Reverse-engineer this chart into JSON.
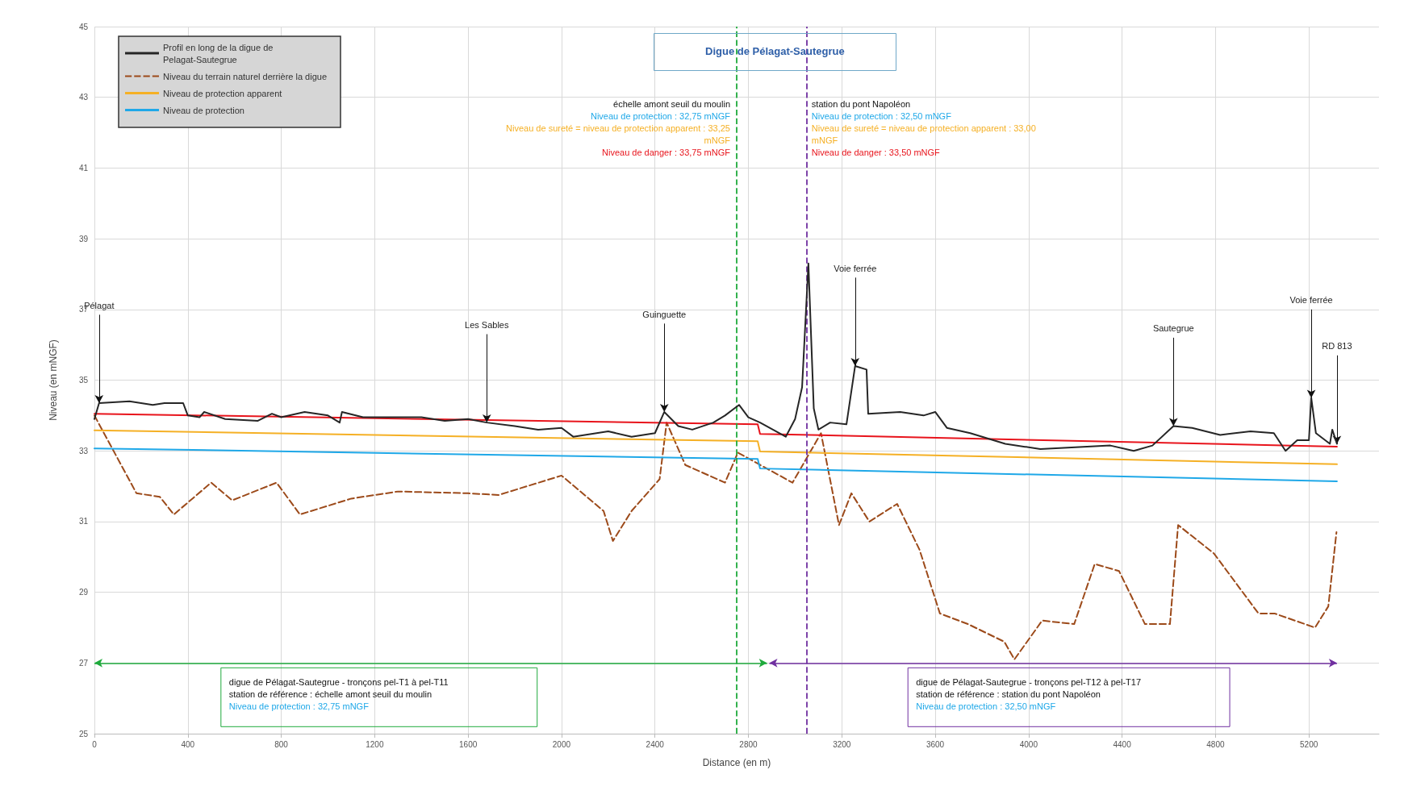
{
  "chart_data": {
    "type": "line",
    "title": "Digue de Pélagat-Sautegrue",
    "xlabel": "Distance (en m)",
    "ylabel": "Niveau (en mNGF)",
    "xlim": [
      0,
      5500
    ],
    "xticks": [
      0,
      400,
      800,
      1200,
      1600,
      2000,
      2400,
      2800,
      3200,
      3600,
      4000,
      4400,
      4800,
      5200
    ],
    "ylim": [
      25,
      45
    ],
    "yticks": [
      25,
      27,
      29,
      31,
      33,
      35,
      37,
      39,
      41,
      43,
      45
    ],
    "grid": true,
    "legend": "top left",
    "marker": "none",
    "series": [
      {
        "name": "Profil en long de la digue de Pelagat-Sautegrue",
        "color": "#262626",
        "line_style": "solid",
        "x": [
          0,
          20,
          150,
          250,
          300,
          380,
          400,
          450,
          470,
          560,
          700,
          760,
          800,
          900,
          1000,
          1050,
          1060,
          1150,
          1250,
          1400,
          1500,
          1600,
          1680,
          1800,
          1900,
          2000,
          2050,
          2200,
          2300,
          2400,
          2440,
          2500,
          2560,
          2650,
          2700,
          2760,
          2800,
          2850,
          2960,
          3000,
          3030,
          3057,
          3080,
          3100,
          3150,
          3220,
          3257,
          3306,
          3313,
          3450,
          3550,
          3600,
          3650,
          3750,
          3900,
          4050,
          4200,
          4350,
          4450,
          4530,
          4620,
          4700,
          4820,
          4950,
          5050,
          5100,
          5150,
          5200,
          5210,
          5230,
          5290,
          5300,
          5320
        ],
        "values": [
          33.9,
          34.35,
          34.4,
          34.3,
          34.35,
          34.35,
          34.0,
          33.95,
          34.1,
          33.9,
          33.85,
          34.05,
          33.95,
          34.1,
          34.0,
          33.8,
          34.1,
          33.95,
          33.95,
          33.95,
          33.85,
          33.9,
          33.8,
          33.7,
          33.6,
          33.65,
          33.4,
          33.55,
          33.4,
          33.5,
          34.1,
          33.7,
          33.6,
          33.8,
          34.0,
          34.3,
          33.95,
          33.8,
          33.4,
          33.9,
          34.8,
          38.3,
          34.2,
          33.6,
          33.8,
          33.75,
          35.4,
          35.3,
          34.05,
          34.1,
          34.0,
          34.1,
          33.65,
          33.5,
          33.2,
          33.05,
          33.1,
          33.15,
          33.0,
          33.15,
          33.7,
          33.65,
          33.45,
          33.55,
          33.5,
          33.0,
          33.3,
          33.3,
          34.5,
          33.5,
          33.2,
          33.6,
          33.2
        ]
      },
      {
        "name": "Niveau du terrain naturel derrière la digue",
        "color": "#9c4a1a",
        "line_style": "dashed",
        "x": [
          0,
          180,
          280,
          340,
          500,
          590,
          780,
          880,
          1100,
          1300,
          1600,
          1730,
          2000,
          2180,
          2220,
          2300,
          2420,
          2450,
          2530,
          2700,
          2755,
          2851,
          2989,
          3111,
          3188,
          3241,
          3318,
          3437,
          3533,
          3620,
          3740,
          3896,
          3939,
          4058,
          4195,
          4283,
          4387,
          4498,
          4605,
          4640,
          4793,
          4984,
          5053,
          5226,
          5283,
          5318
        ],
        "values": [
          34.0,
          31.8,
          31.7,
          31.2,
          32.1,
          31.6,
          32.1,
          31.2,
          31.65,
          31.85,
          31.8,
          31.75,
          32.3,
          31.3,
          30.45,
          31.3,
          32.2,
          33.8,
          32.6,
          32.1,
          32.95,
          32.6,
          32.1,
          33.5,
          30.9,
          31.8,
          31.0,
          31.5,
          30.2,
          28.4,
          28.1,
          27.6,
          27.1,
          28.2,
          28.1,
          29.8,
          29.6,
          28.1,
          28.1,
          30.9,
          30.1,
          28.4,
          28.4,
          28.0,
          28.6,
          30.7
        ]
      },
      {
        "name": "Niveau de protection apparent",
        "color": "#f5b025",
        "line_style": "solid",
        "x": [
          0,
          2840,
          2850,
          5320
        ],
        "values": [
          33.58,
          33.27,
          32.98,
          32.62
        ]
      },
      {
        "name": "Niveau de protection",
        "color": "#1fa8e8",
        "line_style": "solid",
        "x": [
          0,
          2840,
          2850,
          5320
        ],
        "values": [
          33.07,
          32.77,
          32.5,
          32.14
        ]
      },
      {
        "color": "#e8141c",
        "line_style": "solid",
        "x": [
          0,
          2840,
          2850,
          5320
        ],
        "values": [
          34.05,
          33.75,
          33.48,
          33.12
        ]
      }
    ],
    "ref_lines": [
      {
        "axis": "x",
        "value": 2750,
        "color": "#1faa3c",
        "line_style": "dashed"
      },
      {
        "axis": "x",
        "value": 3050,
        "color": "#7030a0",
        "line_style": "dashed"
      }
    ],
    "annotations": [
      "échelle amont seuil du moulin\nNiveau de protection : 32,75 mNGF\nNiveau de sureté = niveau de protection apparent : 33,25\nmNGF\nNiveau de danger : 33,75 mNGF",
      "station du pont Napoléon\nNiveau de protection : 32,50 mNGF\nNiveau de sureté = niveau de protection apparent : 33,00\nmNGF\nNiveau de danger : 33,50 mNGF",
      "digue de Pélagat-Sautegrue - tronçons pel-T1 à pel-T11\nstation de référence : échelle amont seuil du moulin\nNiveau de protection : 32,75 mNGF",
      "digue de Pélagat-Sautegrue - tronçons pel-T12 à pel-T17\nstation de référence : station du pont Napoléon\nNiveau de protection : 32,50 mNGF",
      {
        "text": "Pélagat",
        "x": 20,
        "y": 34.35
      },
      {
        "text": "Les Sables",
        "x": 1680,
        "y": 33.8
      },
      {
        "text": "Guinguette",
        "x": 2440,
        "y": 34.1
      },
      {
        "text": "Voie ferrée",
        "x": 3257,
        "y": 35.4
      },
      {
        "text": "Sautegrue",
        "x": 4620,
        "y": 33.7
      },
      {
        "text": "Voie ferrée",
        "x": 5210,
        "y": 34.5
      },
      {
        "text": "RD 813",
        "x": 5320,
        "y": 33.2
      }
    ]
  }
}
